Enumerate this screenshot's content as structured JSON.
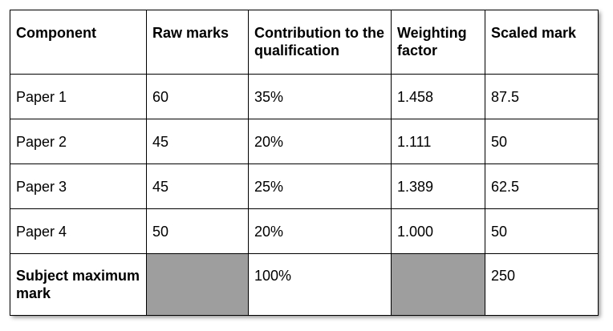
{
  "table": {
    "headers": [
      "Component",
      "Raw marks",
      "Contribution to the qualification",
      "Weighting factor",
      "Scaled mark"
    ],
    "rows": [
      [
        "Paper 1",
        "60",
        "35%",
        "1.458",
        "87.5"
      ],
      [
        "Paper 2",
        "45",
        "20%",
        "1.111",
        "50"
      ],
      [
        "Paper 3",
        "45",
        "25%",
        "1.389",
        "62.5"
      ],
      [
        "Paper 4",
        "50",
        "20%",
        "1.000",
        "50"
      ]
    ],
    "total": {
      "label": "Subject maximum mark",
      "raw_marks": "",
      "contribution": "100%",
      "weighting_factor": "",
      "scaled_mark": "250"
    },
    "shaded_cell_color": "#9e9e9e"
  }
}
